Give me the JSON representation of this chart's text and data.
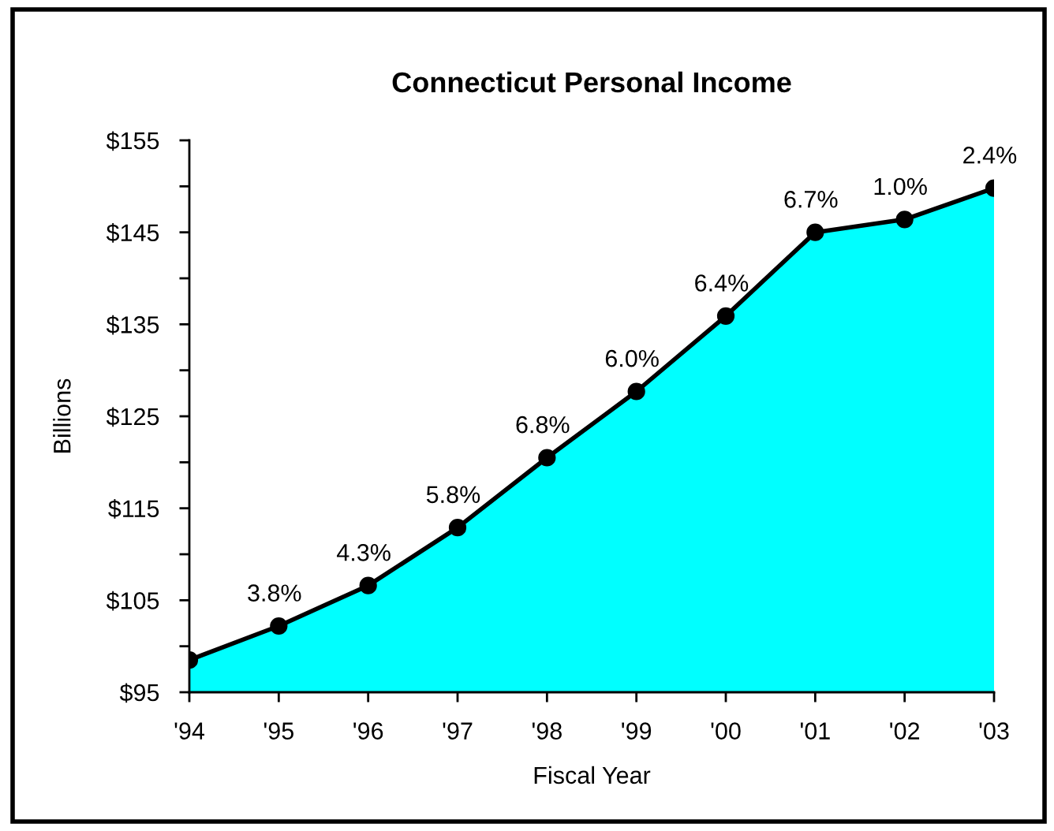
{
  "chart_data": {
    "type": "area",
    "title": "Connecticut Personal Income",
    "xlabel": "Fiscal Year",
    "ylabel": "Billions",
    "categories": [
      "'94",
      "'95",
      "'96",
      "'97",
      "'98",
      "'99",
      "'00",
      "'01",
      "'02",
      "'03"
    ],
    "series": [
      {
        "color": "#00ffff",
        "values": [
          98.5,
          102.2,
          106.6,
          112.9,
          120.5,
          127.7,
          135.9,
          145.0,
          146.4,
          149.8
        ]
      }
    ],
    "annotations": [
      {
        "text": "3.8%",
        "x": "'95",
        "y": 102.2
      },
      {
        "text": "4.3%",
        "x": "'96",
        "y": 106.6
      },
      {
        "text": "5.8%",
        "x": "'97",
        "y": 112.9
      },
      {
        "text": "6.8%",
        "x": "'98",
        "y": 120.5
      },
      {
        "text": "6.0%",
        "x": "'99",
        "y": 127.7
      },
      {
        "text": "6.4%",
        "x": "'00",
        "y": 135.9
      },
      {
        "text": "6.7%",
        "x": "'01",
        "y": 145.0
      },
      {
        "text": "1.0%",
        "x": "'02",
        "y": 146.4
      },
      {
        "text": "2.4%",
        "x": "'03",
        "y": 149.8
      }
    ],
    "ylim": [
      95,
      155
    ],
    "yticks": [
      {
        "value": 95,
        "label": "$95"
      },
      {
        "value": 100,
        "label": null
      },
      {
        "value": 105,
        "label": "$105"
      },
      {
        "value": 110,
        "label": null
      },
      {
        "value": 115,
        "label": "$115"
      },
      {
        "value": 120,
        "label": null
      },
      {
        "value": 125,
        "label": "$125"
      },
      {
        "value": 130,
        "label": null
      },
      {
        "value": 135,
        "label": "$135"
      },
      {
        "value": 140,
        "label": null
      },
      {
        "value": 145,
        "label": "$145"
      },
      {
        "value": 150,
        "label": null
      },
      {
        "value": 155,
        "label": "$155"
      }
    ],
    "grid": false,
    "marker": "circle",
    "line_style": "solid"
  }
}
